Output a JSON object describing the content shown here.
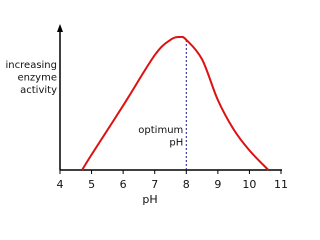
{
  "chart_data": {
    "type": "line",
    "y_label": [
      "increasing",
      "enzyme",
      "activity"
    ],
    "x_label": "pH",
    "annotation": {
      "lines": [
        "optimum",
        "pH"
      ],
      "x": 8
    },
    "x": [
      4.7,
      5,
      6,
      7,
      7.5,
      7.8,
      8,
      8.5,
      9,
      9.5,
      10,
      10.6
    ],
    "series": [
      {
        "color": "#dd1111",
        "values": [
          0,
          11,
          46,
          82,
          93,
          95,
          93,
          79,
          50,
          29,
          14,
          0
        ]
      }
    ],
    "xlim": [
      4,
      11
    ],
    "xticks": [
      4,
      5,
      6,
      7,
      8,
      9,
      10,
      11
    ],
    "ylim": [
      0,
      100
    ],
    "annotation_color": "#1a1a99"
  }
}
